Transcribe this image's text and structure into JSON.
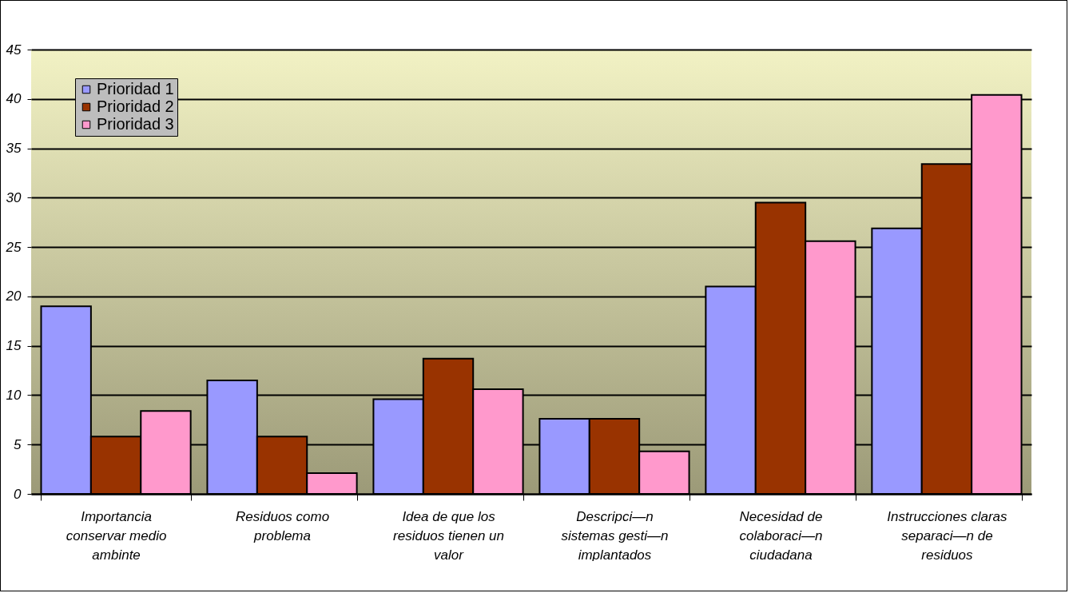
{
  "chart_data": {
    "type": "bar",
    "categories": [
      "Importancia conservar medio ambinte",
      "Residuos como problema",
      "Idea de que los residuos tienen un valor",
      "Descripci—n sistemas gesti—n implantados",
      "Necesidad de colaboraci—n ciudadana",
      "Instrucciones claras separaci—n de residuos"
    ],
    "series": [
      {
        "name": "Prioridad 1",
        "color": "#9999ff",
        "values": [
          19.0,
          11.5,
          9.6,
          7.6,
          21.0,
          26.9
        ]
      },
      {
        "name": "Prioridad 2",
        "color": "#993300",
        "values": [
          5.8,
          5.8,
          13.7,
          7.6,
          29.5,
          33.4
        ]
      },
      {
        "name": "Prioridad 3",
        "color": "#ff99cc",
        "values": [
          8.4,
          2.1,
          10.6,
          4.3,
          25.6,
          40.4
        ]
      }
    ],
    "ylim": [
      0,
      45
    ],
    "yticks": [
      0,
      5,
      10,
      15,
      20,
      25,
      30,
      35,
      40,
      45
    ],
    "grid": "y",
    "legend": "top left"
  }
}
